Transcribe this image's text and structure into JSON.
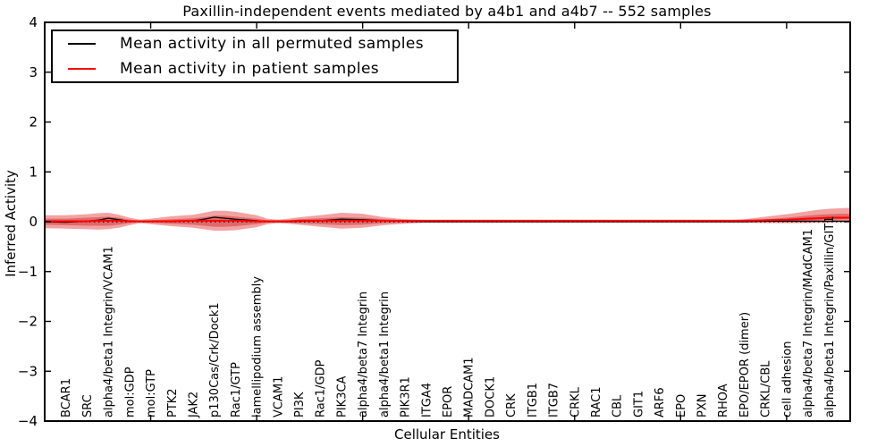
{
  "chart_data": {
    "type": "area",
    "title": "Paxillin-independent events mediated by a4b1 and a4b7 -- 552 samples",
    "xlabel": "Cellular Entities",
    "ylabel": "Inferred Activity",
    "xlim": [
      0,
      38
    ],
    "ylim": [
      -4,
      4
    ],
    "yticks": [
      4,
      3,
      2,
      1,
      0,
      -1,
      -2,
      -3,
      -4
    ],
    "xticks": [
      5,
      10,
      15,
      20,
      25,
      30,
      35
    ],
    "grid": false,
    "zero_line": 0,
    "categories": [
      "BCAR1",
      "SRC",
      "alpha4/beta1 Integrin/VCAM1",
      "mol:GDP",
      "mol:GTP",
      "PTK2",
      "JAK2",
      "p130Cas/Crk/Dock1",
      "Rac1/GTP",
      "lamellipodium assembly",
      "VCAM1",
      "PI3K",
      "Rac1/GDP",
      "PIK3CA",
      "alpha4/beta7 Integrin",
      "alpha4/beta1 Integrin",
      "PIK3R1",
      "ITGA4",
      "EPOR",
      "MADCAM1",
      "DOCK1",
      "CRK",
      "ITGB1",
      "ITGB7",
      "CRKL",
      "RAC1",
      "CBL",
      "GIT1",
      "ARF6",
      "EPO",
      "PXN",
      "RHOA",
      "EPO/EPOR (dimer)",
      "CRKL/CBL",
      "cell adhesion",
      "alpha4/beta7 Integrin/MAdCAM1",
      "alpha4/beta1 Integrin/Paxillin/GIT1"
    ],
    "band": {
      "x": [
        0,
        1,
        2,
        2.5,
        3,
        3.5,
        4,
        4.5,
        5,
        6,
        7,
        7.5,
        8,
        8.5,
        9,
        10,
        10.5,
        11,
        11.5,
        12,
        13,
        14,
        15,
        16,
        17,
        18,
        20,
        22,
        24,
        26,
        28,
        30,
        31,
        32,
        33,
        34,
        35,
        36,
        36.5,
        37,
        37.5,
        38
      ],
      "outer_hi": [
        0.13,
        0.13,
        0.15,
        0.17,
        0.18,
        0.14,
        0.08,
        0.04,
        0.06,
        0.11,
        0.14,
        0.18,
        0.22,
        0.22,
        0.2,
        0.13,
        0.06,
        0.04,
        0.06,
        0.09,
        0.13,
        0.18,
        0.16,
        0.09,
        0.05,
        0.03,
        0.02,
        0.02,
        0.02,
        0.02,
        0.02,
        0.02,
        0.03,
        0.03,
        0.05,
        0.1,
        0.15,
        0.21,
        0.24,
        0.26,
        0.27,
        0.28
      ],
      "outer_lo": [
        -0.13,
        -0.14,
        -0.15,
        -0.16,
        -0.15,
        -0.12,
        -0.07,
        -0.03,
        -0.05,
        -0.09,
        -0.12,
        -0.15,
        -0.18,
        -0.18,
        -0.17,
        -0.11,
        -0.05,
        -0.03,
        -0.04,
        -0.06,
        -0.1,
        -0.14,
        -0.12,
        -0.07,
        -0.04,
        -0.02,
        -0.02,
        -0.02,
        -0.02,
        -0.02,
        -0.02,
        -0.02,
        -0.02,
        -0.02,
        -0.02,
        -0.03,
        -0.03,
        -0.03,
        -0.02,
        -0.02,
        -0.01,
        -0.01
      ],
      "inner_hi": [
        0.06,
        0.06,
        0.08,
        0.09,
        0.1,
        0.08,
        0.04,
        0.02,
        0.03,
        0.05,
        0.07,
        0.09,
        0.12,
        0.12,
        0.1,
        0.06,
        0.03,
        0.02,
        0.03,
        0.05,
        0.07,
        0.09,
        0.08,
        0.05,
        0.03,
        0.02,
        0.01,
        0.01,
        0.01,
        0.01,
        0.01,
        0.01,
        0.02,
        0.02,
        0.03,
        0.05,
        0.08,
        0.12,
        0.14,
        0.15,
        0.16,
        0.16
      ],
      "inner_lo": [
        -0.06,
        -0.07,
        -0.08,
        -0.08,
        -0.08,
        -0.06,
        -0.03,
        -0.01,
        -0.02,
        -0.04,
        -0.06,
        -0.08,
        -0.1,
        -0.1,
        -0.09,
        -0.05,
        -0.02,
        -0.01,
        -0.02,
        -0.03,
        -0.05,
        -0.07,
        -0.06,
        -0.03,
        -0.02,
        -0.01,
        -0.01,
        -0.01,
        -0.01,
        -0.01,
        -0.01,
        -0.01,
        -0.01,
        -0.01,
        0.0,
        0.0,
        0.01,
        0.02,
        0.03,
        0.04,
        0.04,
        0.05
      ]
    },
    "series": [
      {
        "name": "Mean activity in all permuted samples",
        "color": "#000000",
        "y": [
          0.0,
          -0.01,
          0.01,
          0.03,
          0.07,
          0.04,
          0.01,
          0.0,
          0.0,
          0.01,
          0.02,
          0.05,
          0.09,
          0.07,
          0.05,
          0.02,
          0.0,
          0.0,
          0.0,
          0.01,
          0.02,
          0.05,
          0.04,
          0.02,
          0.01,
          0.0,
          0.0,
          0.0,
          0.0,
          0.0,
          0.0,
          0.0,
          0.0,
          0.0,
          0.0,
          0.01,
          0.01,
          0.01,
          0.01,
          0.01,
          0.01,
          0.01
        ]
      },
      {
        "name": "Mean activity in patient samples",
        "color": "#ff0000",
        "y": [
          0.01,
          0.01,
          0.01,
          0.02,
          0.02,
          0.02,
          0.01,
          0.01,
          0.01,
          0.01,
          0.02,
          0.02,
          0.02,
          0.02,
          0.02,
          0.01,
          0.01,
          0.01,
          0.01,
          0.02,
          0.02,
          0.02,
          0.02,
          0.02,
          0.02,
          0.02,
          0.02,
          0.02,
          0.02,
          0.02,
          0.02,
          0.02,
          0.02,
          0.02,
          0.02,
          0.03,
          0.04,
          0.06,
          0.07,
          0.08,
          0.08,
          0.08
        ]
      }
    ],
    "colors": {
      "band_outer": "#f2a2a2",
      "band_inner": "#e06a6a",
      "frame": "#000000",
      "zero_line": "#000000"
    }
  },
  "legend": {
    "items": [
      {
        "label": "Mean activity in all permuted samples",
        "color": "#000000"
      },
      {
        "label": "Mean activity in patient samples",
        "color": "#ff0000"
      }
    ]
  }
}
